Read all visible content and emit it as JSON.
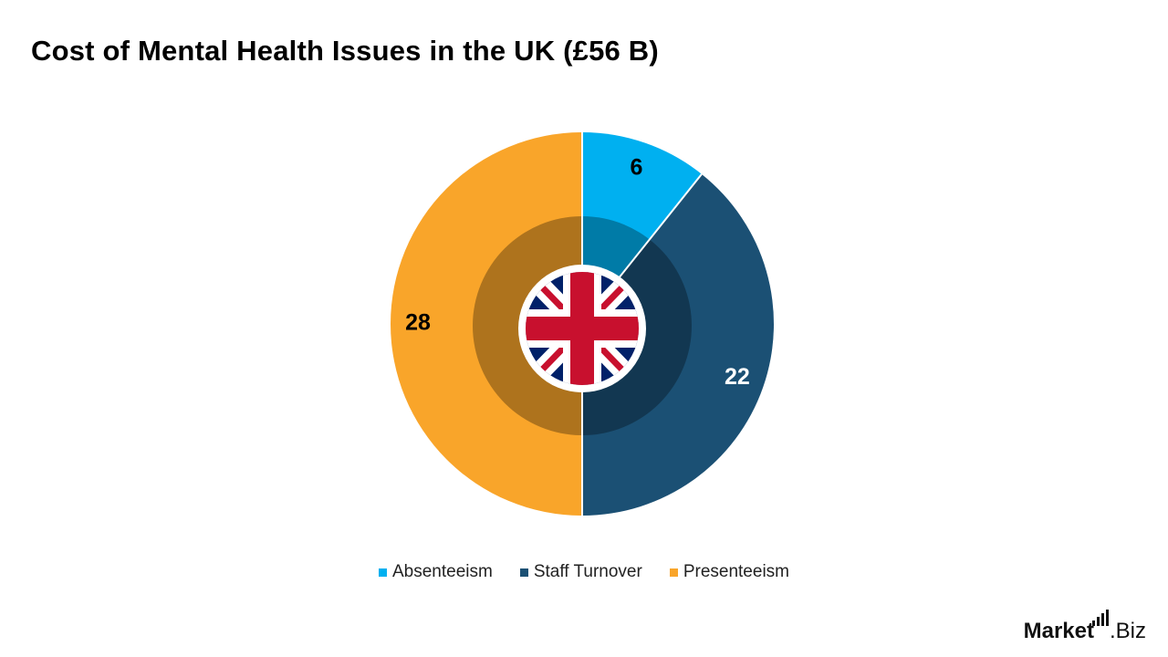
{
  "title": "Cost of Mental Health Issues in the UK (£56 B)",
  "brand": {
    "name_strong": "Market",
    "name_rest": ".Biz",
    "logo_icon": "bar-chart-icon"
  },
  "center_icon": "uk-flag-icon",
  "chart_data": {
    "type": "pie",
    "title": "Cost of Mental Health Issues in the UK (£56 B)",
    "categories": [
      "Absenteeism",
      "Staff Turnover",
      "Presenteeism"
    ],
    "values": [
      6,
      22,
      28
    ],
    "colors": [
      "#00B0F0",
      "#1B5074",
      "#F9A52A"
    ],
    "data_labels": [
      "6",
      "22",
      "28"
    ],
    "label_colors": [
      "#000000",
      "#FFFFFF",
      "#000000"
    ],
    "legend_position": "bottom",
    "total": 56
  }
}
